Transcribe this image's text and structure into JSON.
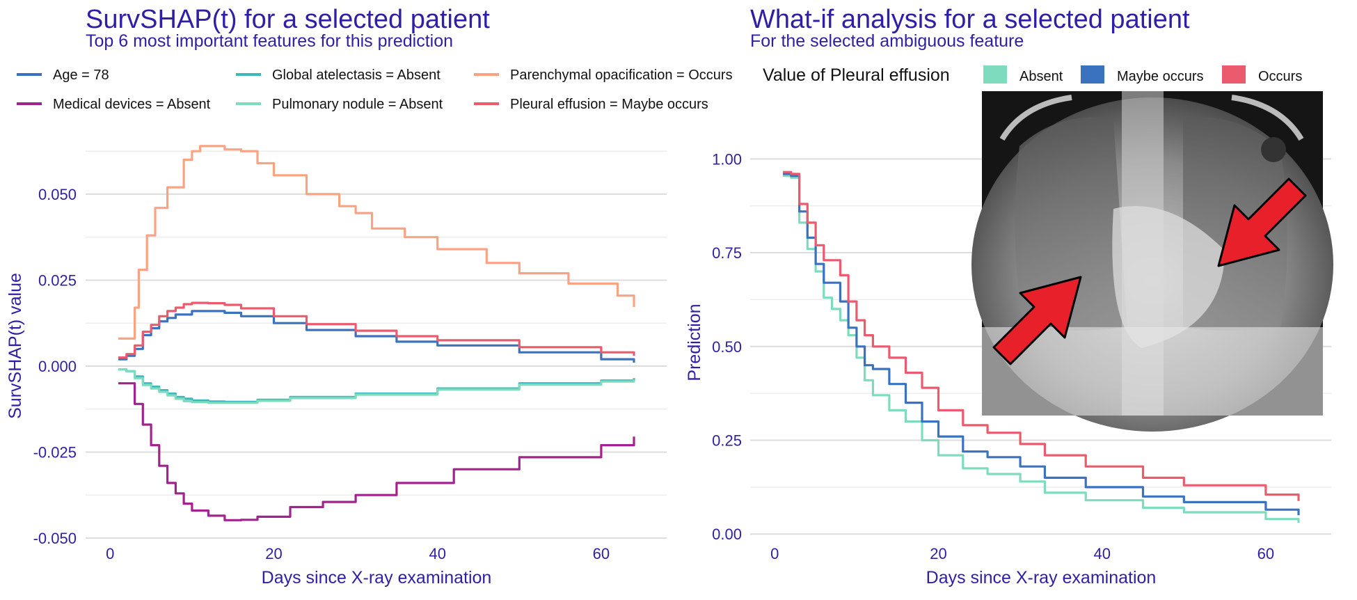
{
  "chart_data": [
    {
      "type": "line",
      "title": "SurvSHAP(t) for a selected patient",
      "subtitle": "Top 6 most important features for this prediction",
      "xlabel": "Days since X-ray examination",
      "ylabel": "SurvSHAP(t) value",
      "xlim": [
        -3,
        68
      ],
      "ylim": [
        -0.05,
        0.068
      ],
      "xticks": [
        "0",
        "20",
        "40",
        "60"
      ],
      "xtick_values": [
        0,
        20,
        40,
        60
      ],
      "yticks": [
        "-0.050",
        "-0.025",
        "0.000",
        "0.025",
        "0.050"
      ],
      "ytick_values": [
        -0.05,
        -0.025,
        0,
        0.025,
        0.05
      ],
      "grid": true,
      "legend_position": "top",
      "series": [
        {
          "name": "Age = 78",
          "color": "#3b72c0",
          "points": [
            [
              1,
              0.002
            ],
            [
              2,
              0.003
            ],
            [
              3,
              0.005
            ],
            [
              4,
              0.009
            ],
            [
              5,
              0.011
            ],
            [
              6,
              0.013
            ],
            [
              7,
              0.014
            ],
            [
              8,
              0.015
            ],
            [
              10,
              0.016
            ],
            [
              12,
              0.016
            ],
            [
              14,
              0.0155
            ],
            [
              16,
              0.0145
            ],
            [
              20,
              0.0125
            ],
            [
              24,
              0.0105
            ],
            [
              30,
              0.0087
            ],
            [
              35,
              0.0071
            ],
            [
              40,
              0.006
            ],
            [
              50,
              0.004
            ],
            [
              60,
              0.002
            ],
            [
              64,
              0.001
            ]
          ]
        },
        {
          "name": "Medical devices = Absent",
          "color": "#a1238e",
          "points": [
            [
              1,
              -0.005
            ],
            [
              2,
              -0.005
            ],
            [
              3,
              -0.011
            ],
            [
              4,
              -0.017
            ],
            [
              5,
              -0.023
            ],
            [
              6,
              -0.029
            ],
            [
              7,
              -0.034
            ],
            [
              8,
              -0.037
            ],
            [
              9,
              -0.04
            ],
            [
              10,
              -0.042
            ],
            [
              12,
              -0.0435
            ],
            [
              14,
              -0.0448
            ],
            [
              16,
              -0.0447
            ],
            [
              18,
              -0.0438
            ],
            [
              22,
              -0.041
            ],
            [
              26,
              -0.0395
            ],
            [
              30,
              -0.0375
            ],
            [
              35,
              -0.034
            ],
            [
              42,
              -0.03
            ],
            [
              50,
              -0.0265
            ],
            [
              60,
              -0.023
            ],
            [
              64,
              -0.0205
            ]
          ]
        },
        {
          "name": "Global atelectasis = Absent",
          "color": "#3ab8bd",
          "points": [
            [
              1,
              -0.001
            ],
            [
              2,
              -0.0015
            ],
            [
              3,
              -0.003
            ],
            [
              4,
              -0.005
            ],
            [
              5,
              -0.006
            ],
            [
              6,
              -0.007
            ],
            [
              7,
              -0.008
            ],
            [
              8,
              -0.009
            ],
            [
              9,
              -0.0095
            ],
            [
              10,
              -0.01
            ],
            [
              12,
              -0.0103
            ],
            [
              14,
              -0.0104
            ],
            [
              18,
              -0.0098
            ],
            [
              22,
              -0.009
            ],
            [
              30,
              -0.008
            ],
            [
              40,
              -0.0065
            ],
            [
              50,
              -0.005
            ],
            [
              60,
              -0.0042
            ],
            [
              64,
              -0.0035
            ]
          ]
        },
        {
          "name": "Pulmonary nodule = Absent",
          "color": "#7fdbbe",
          "points": [
            [
              1,
              -0.001
            ],
            [
              2,
              -0.0015
            ],
            [
              3,
              -0.0035
            ],
            [
              4,
              -0.0055
            ],
            [
              5,
              -0.0065
            ],
            [
              6,
              -0.0075
            ],
            [
              7,
              -0.0085
            ],
            [
              8,
              -0.0095
            ],
            [
              9,
              -0.0102
            ],
            [
              10,
              -0.0105
            ],
            [
              12,
              -0.0107
            ],
            [
              14,
              -0.0107
            ],
            [
              18,
              -0.0101
            ],
            [
              22,
              -0.0093
            ],
            [
              30,
              -0.0083
            ],
            [
              40,
              -0.0068
            ],
            [
              50,
              -0.0054
            ],
            [
              60,
              -0.0045
            ],
            [
              64,
              -0.0039
            ]
          ]
        },
        {
          "name": "Parenchymal opacification = Occurs",
          "color": "#f9a383",
          "points": [
            [
              1,
              0.008
            ],
            [
              2,
              0.008
            ],
            [
              3,
              0.017
            ],
            [
              3.5,
              0.028
            ],
            [
              4,
              0.028
            ],
            [
              4.5,
              0.038
            ],
            [
              5,
              0.038
            ],
            [
              5.5,
              0.046
            ],
            [
              6,
              0.046
            ],
            [
              7,
              0.052
            ],
            [
              8,
              0.052
            ],
            [
              9,
              0.06
            ],
            [
              10,
              0.0625
            ],
            [
              11,
              0.064
            ],
            [
              12,
              0.064
            ],
            [
              14,
              0.063
            ],
            [
              16,
              0.0625
            ],
            [
              18,
              0.059
            ],
            [
              20,
              0.0555
            ],
            [
              24,
              0.05
            ],
            [
              28,
              0.0465
            ],
            [
              30,
              0.0445
            ],
            [
              32,
              0.04
            ],
            [
              36,
              0.0375
            ],
            [
              40,
              0.034
            ],
            [
              46,
              0.03
            ],
            [
              50,
              0.027
            ],
            [
              56,
              0.024
            ],
            [
              62,
              0.0205
            ],
            [
              64,
              0.0172
            ]
          ]
        },
        {
          "name": "Pleural effusion = Maybe occurs",
          "color": "#ec5a6d",
          "points": [
            [
              1,
              0.0025
            ],
            [
              2,
              0.0035
            ],
            [
              3,
              0.006
            ],
            [
              4,
              0.01
            ],
            [
              5,
              0.012
            ],
            [
              6,
              0.0145
            ],
            [
              7,
              0.016
            ],
            [
              8,
              0.017
            ],
            [
              9,
              0.018
            ],
            [
              10,
              0.0184
            ],
            [
              12,
              0.0183
            ],
            [
              14,
              0.0178
            ],
            [
              16,
              0.0168
            ],
            [
              20,
              0.0145
            ],
            [
              24,
              0.0122
            ],
            [
              30,
              0.0103
            ],
            [
              35,
              0.0087
            ],
            [
              40,
              0.0075
            ],
            [
              50,
              0.0055
            ],
            [
              60,
              0.004
            ],
            [
              64,
              0.003
            ]
          ]
        }
      ]
    },
    {
      "type": "line",
      "title": "What-if analysis for a selected patient",
      "subtitle": "For the selected ambiguous feature",
      "xlabel": "Days since X-ray examination",
      "ylabel": "Prediction",
      "xlim": [
        -3,
        68
      ],
      "ylim": [
        -0.02,
        1.06
      ],
      "xticks": [
        "0",
        "20",
        "40",
        "60"
      ],
      "xtick_values": [
        0,
        20,
        40,
        60
      ],
      "yticks": [
        "0.00",
        "0.25",
        "0.50",
        "0.75",
        "1.00"
      ],
      "ytick_values": [
        0,
        0.25,
        0.5,
        0.75,
        1.0
      ],
      "grid": true,
      "legend_title": "Value of Pleural effusion",
      "legend_position": "top",
      "series": [
        {
          "name": "Absent",
          "color": "#7fdbbe",
          "points": [
            [
              1,
              0.955
            ],
            [
              2,
              0.95
            ],
            [
              3,
              0.83
            ],
            [
              4,
              0.76
            ],
            [
              5,
              0.7
            ],
            [
              6,
              0.63
            ],
            [
              7,
              0.6
            ],
            [
              8,
              0.57
            ],
            [
              9,
              0.53
            ],
            [
              10,
              0.47
            ],
            [
              11,
              0.41
            ],
            [
              12,
              0.37
            ],
            [
              14,
              0.33
            ],
            [
              16,
              0.3
            ],
            [
              18,
              0.25
            ],
            [
              20,
              0.21
            ],
            [
              23,
              0.175
            ],
            [
              26,
              0.16
            ],
            [
              30,
              0.14
            ],
            [
              33,
              0.11
            ],
            [
              38,
              0.09
            ],
            [
              45,
              0.07
            ],
            [
              50,
              0.058
            ],
            [
              60,
              0.04
            ],
            [
              64,
              0.03
            ]
          ]
        },
        {
          "name": "Maybe occurs",
          "color": "#3b72c0",
          "points": [
            [
              1,
              0.96
            ],
            [
              2,
              0.955
            ],
            [
              3,
              0.86
            ],
            [
              4,
              0.79
            ],
            [
              5,
              0.72
            ],
            [
              6,
              0.67
            ],
            [
              7,
              0.67
            ],
            [
              8,
              0.62
            ],
            [
              9,
              0.55
            ],
            [
              10,
              0.5
            ],
            [
              11,
              0.45
            ],
            [
              12,
              0.44
            ],
            [
              14,
              0.4
            ],
            [
              16,
              0.35
            ],
            [
              18,
              0.3
            ],
            [
              20,
              0.26
            ],
            [
              23,
              0.22
            ],
            [
              26,
              0.205
            ],
            [
              30,
              0.18
            ],
            [
              33,
              0.15
            ],
            [
              38,
              0.125
            ],
            [
              45,
              0.1
            ],
            [
              50,
              0.085
            ],
            [
              60,
              0.065
            ],
            [
              64,
              0.05
            ]
          ]
        },
        {
          "name": "Occurs",
          "color": "#ec5a6d",
          "points": [
            [
              1,
              0.965
            ],
            [
              2,
              0.96
            ],
            [
              3,
              0.88
            ],
            [
              4,
              0.83
            ],
            [
              5,
              0.77
            ],
            [
              6,
              0.73
            ],
            [
              7,
              0.73
            ],
            [
              8,
              0.69
            ],
            [
              9,
              0.62
            ],
            [
              10,
              0.57
            ],
            [
              11,
              0.53
            ],
            [
              12,
              0.5
            ],
            [
              14,
              0.47
            ],
            [
              16,
              0.43
            ],
            [
              18,
              0.39
            ],
            [
              20,
              0.33
            ],
            [
              23,
              0.29
            ],
            [
              26,
              0.27
            ],
            [
              30,
              0.24
            ],
            [
              33,
              0.21
            ],
            [
              38,
              0.18
            ],
            [
              45,
              0.15
            ],
            [
              50,
              0.13
            ],
            [
              60,
              0.105
            ],
            [
              64,
              0.088
            ]
          ]
        }
      ]
    }
  ]
}
